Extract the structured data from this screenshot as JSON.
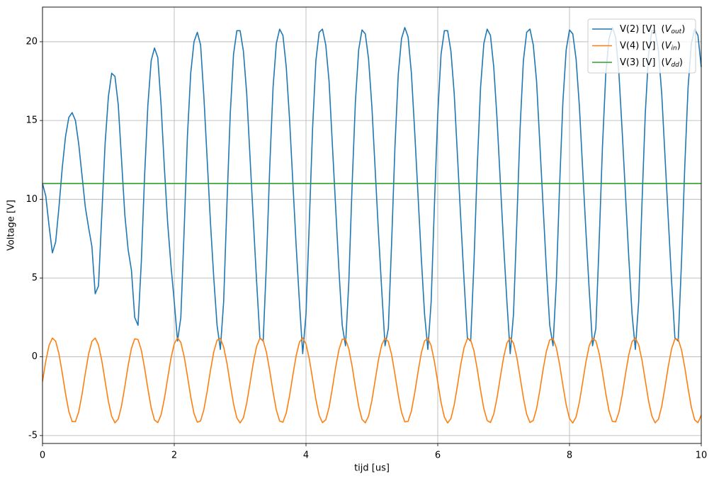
{
  "chart_data": {
    "type": "line",
    "xlabel": "tijd [us]",
    "ylabel": "Voltage [V]",
    "xlim": [
      0,
      10
    ],
    "ylim": [
      -5.5,
      22.2
    ],
    "xticks": [
      0,
      2,
      4,
      6,
      8,
      10
    ],
    "yticks": [
      -5,
      0,
      5,
      10,
      15,
      20
    ],
    "grid": true,
    "legend": "upper right",
    "x": [
      0,
      0.05,
      0.1,
      0.15,
      0.2,
      0.25,
      0.3,
      0.35,
      0.4,
      0.45,
      0.5,
      0.55,
      0.6,
      0.65,
      0.7,
      0.75,
      0.8,
      0.85,
      0.9,
      0.95,
      1,
      1.05,
      1.1,
      1.15,
      1.2,
      1.25,
      1.3,
      1.35,
      1.4,
      1.45,
      1.5,
      1.55,
      1.6,
      1.65,
      1.7,
      1.75,
      1.8,
      1.85,
      1.9,
      1.95,
      2,
      2.05,
      2.1,
      2.15,
      2.2,
      2.25,
      2.3,
      2.35,
      2.4,
      2.45,
      2.5,
      2.55,
      2.6,
      2.65,
      2.7,
      2.75,
      2.8,
      2.85,
      2.9,
      2.95,
      3,
      3.05,
      3.1,
      3.15,
      3.2,
      3.25,
      3.3,
      3.35,
      3.4,
      3.45,
      3.5,
      3.55,
      3.6,
      3.65,
      3.7,
      3.75,
      3.8,
      3.85,
      3.9,
      3.95,
      4,
      4.05,
      4.1,
      4.15,
      4.2,
      4.25,
      4.3,
      4.35,
      4.4,
      4.45,
      4.5,
      4.55,
      4.6,
      4.65,
      4.7,
      4.75,
      4.8,
      4.85,
      4.9,
      4.95,
      5,
      5.05,
      5.1,
      5.15,
      5.2,
      5.25,
      5.3,
      5.35,
      5.4,
      5.45,
      5.5,
      5.55,
      5.6,
      5.65,
      5.7,
      5.75,
      5.8,
      5.85,
      5.9,
      5.95,
      6,
      6.05,
      6.1,
      6.15,
      6.2,
      6.25,
      6.3,
      6.35,
      6.4,
      6.45,
      6.5,
      6.55,
      6.6,
      6.65,
      6.7,
      6.75,
      6.8,
      6.85,
      6.9,
      6.95,
      7,
      7.05,
      7.1,
      7.15,
      7.2,
      7.25,
      7.3,
      7.35,
      7.4,
      7.45,
      7.5,
      7.55,
      7.6,
      7.65,
      7.7,
      7.75,
      7.8,
      7.85,
      7.9,
      7.95,
      8,
      8.05,
      8.1,
      8.15,
      8.2,
      8.25,
      8.3,
      8.35,
      8.4,
      8.45,
      8.5,
      8.55,
      8.6,
      8.65,
      8.7,
      8.75,
      8.8,
      8.85,
      8.9,
      8.95,
      9,
      9.05,
      9.1,
      9.15,
      9.2,
      9.25,
      9.3,
      9.35,
      9.4,
      9.45,
      9.5,
      9.55,
      9.6,
      9.65,
      9.7,
      9.75,
      9.8,
      9.85,
      9.9,
      9.95,
      10
    ],
    "series": [
      {
        "name": "V(2) [V]",
        "name_math": [
          "(",
          "V",
          "out",
          ")"
        ],
        "color": "#1f77b4",
        "values": [
          11.0,
          10.2,
          8.3,
          6.6,
          7.3,
          9.5,
          12.0,
          14.0,
          15.2,
          15.5,
          15.0,
          13.5,
          11.5,
          9.5,
          8.2,
          7.0,
          4.0,
          4.5,
          9.0,
          13.5,
          16.5,
          18.0,
          17.8,
          16.0,
          12.5,
          9.0,
          6.8,
          5.5,
          2.5,
          2.0,
          6.0,
          11.5,
          16.0,
          18.8,
          19.6,
          19.0,
          16.0,
          12.0,
          8.5,
          5.8,
          3.5,
          1.0,
          2.5,
          8.0,
          14.0,
          18.0,
          20.0,
          20.6,
          19.8,
          16.5,
          12.5,
          8.5,
          5.0,
          2.0,
          0.47,
          3.5,
          9.7,
          15.4,
          19.2,
          20.7,
          20.7,
          19.4,
          16.7,
          12.7,
          8.7,
          4.8,
          1.2,
          1.0,
          6.0,
          12.1,
          17.1,
          19.9,
          20.8,
          20.4,
          18.4,
          15.1,
          11.1,
          7.1,
          3.5,
          0.2,
          2.7,
          8.5,
          14.5,
          18.8,
          20.6,
          20.8,
          19.8,
          17.5,
          13.5,
          9.5,
          5.5,
          2.0,
          0.7,
          4.75,
          10.9,
          16.2,
          19.5,
          20.75,
          20.5,
          18.9,
          15.9,
          11.9,
          7.9,
          4.2,
          0.7,
          1.8,
          7.25,
          13.3,
          17.9,
          20.2,
          20.9,
          20.3,
          18.0,
          14.3,
          10.3,
          6.3,
          2.7,
          0.47,
          3.5,
          9.7,
          15.4,
          19.2,
          20.7,
          20.7,
          19.4,
          16.7,
          12.7,
          8.7,
          4.8,
          1.2,
          1.0,
          6.0,
          12.1,
          17.1,
          19.9,
          20.8,
          20.4,
          18.4,
          15.1,
          11.1,
          7.1,
          3.5,
          0.2,
          2.7,
          8.5,
          14.5,
          18.8,
          20.6,
          20.8,
          19.8,
          17.5,
          13.5,
          9.5,
          5.5,
          2.0,
          0.7,
          4.75,
          10.9,
          16.2,
          19.5,
          20.75,
          20.5,
          18.9,
          15.9,
          11.9,
          7.9,
          4.2,
          0.7,
          1.8,
          7.25,
          13.3,
          17.9,
          20.2,
          20.9,
          20.3,
          18.0,
          14.3,
          10.3,
          6.3,
          2.7,
          0.47,
          3.5,
          9.7,
          15.4,
          19.2,
          20.7,
          20.7,
          19.4,
          16.7,
          12.7,
          8.7,
          4.8,
          1.2,
          1.0,
          6.0,
          12.1,
          17.1,
          19.9,
          20.8,
          20.4,
          18.4
        ]
      },
      {
        "name": "V(4) [V]",
        "name_math": [
          "(",
          "V",
          "in",
          ")"
        ],
        "color": "#ff7f0e",
        "values": [
          -1.56,
          -0.27,
          0.73,
          1.19,
          0.99,
          0.19,
          -1.03,
          -2.35,
          -3.47,
          -4.11,
          -4.12,
          -3.49,
          -2.38,
          -1.05,
          0.17,
          0.98,
          1.19,
          0.75,
          -0.24,
          -1.53,
          -2.82,
          -3.78,
          -4.19,
          -3.95,
          -3.11,
          -1.88,
          -0.56,
          0.54,
          1.14,
          1.1,
          0.43,
          -0.71,
          -2.04,
          -3.24,
          -4.01,
          -4.18,
          -3.69,
          -2.67,
          -1.37,
          -0.1,
          0.83,
          1.2,
          0.91,
          0.03,
          -1.21,
          -2.53,
          -3.6,
          -4.15,
          -4.07,
          -3.35,
          -2.19,
          -0.86,
          0.31,
          1.05,
          1.17,
          0.63,
          -0.41,
          -1.73,
          -2.99,
          -3.88,
          -4.2,
          -3.86,
          -2.95,
          -1.69,
          -0.38,
          0.66,
          1.17,
          1.04,
          0.28,
          -0.9,
          -2.23,
          -3.38,
          -4.08,
          -4.15,
          -3.57,
          -2.49,
          -1.18,
          0.06,
          0.93,
          1.2,
          0.81,
          -0.13,
          -1.41,
          -2.71,
          -3.72,
          -4.18,
          -4.0,
          -3.21,
          -2.0,
          -0.67,
          0.45,
          1.11,
          1.13,
          0.51,
          -0.6,
          -1.92,
          -3.14,
          -3.97,
          -4.19,
          -3.76,
          -2.78,
          -1.49,
          -0.2,
          0.77,
          1.19,
          0.96,
          0.13,
          -1.1,
          -2.42,
          -3.52,
          -4.13,
          -4.1,
          -3.44,
          -2.31,
          -0.98,
          0.23,
          1.01,
          1.18,
          0.7,
          -0.31,
          -1.61,
          -2.89,
          -3.82,
          -4.2,
          -3.92,
          -3.05,
          -1.81,
          -0.48,
          0.59,
          1.15,
          1.07,
          0.37,
          -0.79,
          -2.12,
          -3.3,
          -4.04,
          -4.17,
          -3.64,
          -2.6,
          -1.29,
          -0.03,
          0.87,
          1.2,
          0.87,
          -0.03,
          -1.29,
          -2.6,
          -3.65,
          -4.17,
          -4.04,
          -3.3,
          -2.12,
          -0.79,
          0.37,
          1.07,
          1.15,
          0.58,
          -0.49,
          -1.81,
          -3.05,
          -3.92,
          -4.2,
          -3.82,
          -2.88,
          -1.61,
          -0.31,
          0.71,
          1.18,
          1.01,
          0.22,
          -0.98,
          -2.31,
          -3.44,
          -4.1,
          -4.13,
          -3.52,
          -2.42,
          -1.1,
          0.13,
          0.96,
          1.19,
          0.77,
          -0.2,
          -1.49,
          -2.79,
          -3.76,
          -4.19,
          -3.97,
          -3.14,
          -1.92,
          -0.6,
          0.51,
          1.13,
          1.11,
          0.45,
          -0.67,
          -2.0,
          -3.21,
          -4.0,
          -4.18,
          -3.71
        ]
      },
      {
        "name": "V(3) [V]",
        "name_math": [
          "(",
          "V",
          "dd",
          ")"
        ],
        "color": "#2ca02c",
        "values": [
          11,
          11,
          11,
          11,
          11,
          11,
          11,
          11,
          11,
          11,
          11,
          11,
          11,
          11,
          11,
          11,
          11,
          11,
          11,
          11,
          11,
          11,
          11,
          11,
          11,
          11,
          11,
          11,
          11,
          11,
          11,
          11,
          11,
          11,
          11,
          11,
          11,
          11,
          11,
          11,
          11,
          11,
          11,
          11,
          11,
          11,
          11,
          11,
          11,
          11,
          11,
          11,
          11,
          11,
          11,
          11,
          11,
          11,
          11,
          11,
          11,
          11,
          11,
          11,
          11,
          11,
          11,
          11,
          11,
          11,
          11,
          11,
          11,
          11,
          11,
          11,
          11,
          11,
          11,
          11,
          11,
          11,
          11,
          11,
          11,
          11,
          11,
          11,
          11,
          11,
          11,
          11,
          11,
          11,
          11,
          11,
          11,
          11,
          11,
          11,
          11,
          11,
          11,
          11,
          11,
          11,
          11,
          11,
          11,
          11,
          11,
          11,
          11,
          11,
          11,
          11,
          11,
          11,
          11,
          11,
          11,
          11,
          11,
          11,
          11,
          11,
          11,
          11,
          11,
          11,
          11,
          11,
          11,
          11,
          11,
          11,
          11,
          11,
          11,
          11,
          11,
          11,
          11,
          11,
          11,
          11,
          11,
          11,
          11,
          11,
          11,
          11,
          11,
          11,
          11,
          11,
          11,
          11,
          11,
          11,
          11,
          11,
          11,
          11,
          11,
          11,
          11,
          11,
          11,
          11,
          11,
          11,
          11,
          11,
          11,
          11,
          11,
          11,
          11,
          11,
          11,
          11,
          11,
          11,
          11,
          11,
          11,
          11,
          11,
          11,
          11,
          11,
          11,
          11,
          11,
          11,
          11,
          11,
          11,
          11,
          11
        ]
      }
    ]
  }
}
